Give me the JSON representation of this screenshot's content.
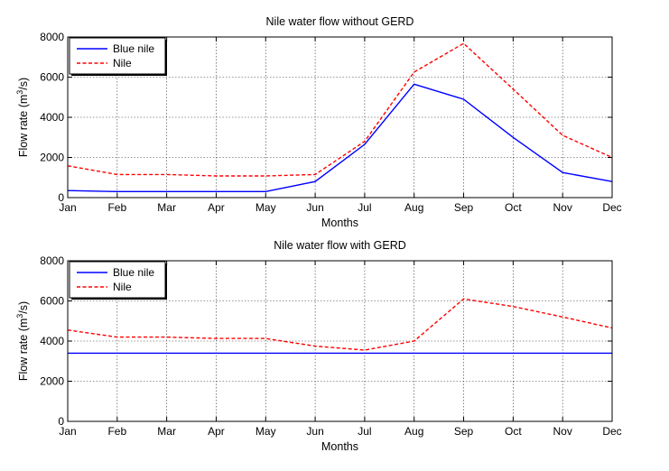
{
  "chart_data": [
    {
      "type": "line",
      "title": "Nile water flow without GERD",
      "xlabel": "Months",
      "ylabel_main": "Flow rate (m",
      "ylabel_sup": "3",
      "ylabel_tail": "/s)",
      "categories": [
        "Jan",
        "Feb",
        "Mar",
        "Apr",
        "May",
        "Jun",
        "Jul",
        "Aug",
        "Sep",
        "Oct",
        "Nov",
        "Dec"
      ],
      "yticks": [
        0,
        2000,
        4000,
        6000,
        8000
      ],
      "ylim": [
        0,
        8000
      ],
      "grid": true,
      "legend_position": "top-left",
      "series": [
        {
          "name": "Blue nile",
          "color": "#0000ff",
          "style": "solid",
          "values": [
            350,
            300,
            300,
            300,
            300,
            800,
            2650,
            5650,
            4900,
            3000,
            1250,
            800
          ]
        },
        {
          "name": "Nile",
          "color": "#ff0000",
          "style": "dashed",
          "values": [
            1580,
            1150,
            1150,
            1080,
            1080,
            1150,
            2800,
            6250,
            7680,
            5400,
            3100,
            2000
          ]
        }
      ]
    },
    {
      "type": "line",
      "title": "Nile water flow with GERD",
      "xlabel": "Months",
      "ylabel_main": "Flow rate (m",
      "ylabel_sup": "3",
      "ylabel_tail": "/s)",
      "categories": [
        "Jan",
        "Feb",
        "Mar",
        "Apr",
        "May",
        "Jun",
        "Jul",
        "Aug",
        "Sep",
        "Oct",
        "Nov",
        "Dec"
      ],
      "yticks": [
        0,
        2000,
        4000,
        6000,
        8000
      ],
      "ylim": [
        0,
        8000
      ],
      "grid": true,
      "legend_position": "top-left",
      "series": [
        {
          "name": "Blue nile",
          "color": "#0000ff",
          "style": "solid",
          "values": [
            3400,
            3400,
            3400,
            3400,
            3400,
            3400,
            3400,
            3400,
            3400,
            3400,
            3400,
            3400
          ]
        },
        {
          "name": "Nile",
          "color": "#ff0000",
          "style": "dashed",
          "values": [
            4550,
            4200,
            4200,
            4130,
            4130,
            3750,
            3550,
            4000,
            6100,
            5720,
            5200,
            4650
          ]
        }
      ]
    }
  ]
}
